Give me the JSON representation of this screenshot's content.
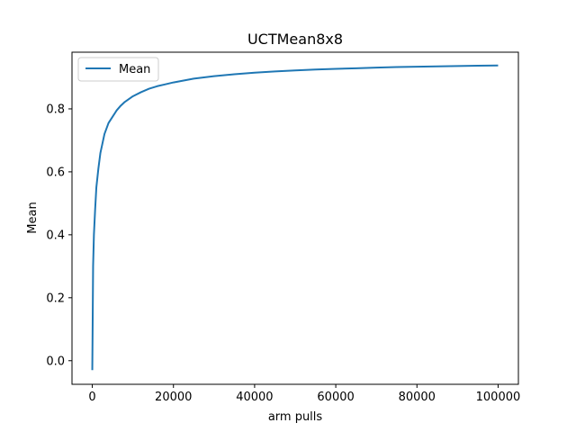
{
  "chart_data": {
    "type": "line",
    "title": "UCTMean8x8",
    "xlabel": "arm pulls",
    "ylabel": "Mean",
    "xlim": [
      -5000,
      105000
    ],
    "ylim": [
      -0.075,
      0.98
    ],
    "x_ticks": [
      0,
      20000,
      40000,
      60000,
      80000,
      100000
    ],
    "x_tick_labels": [
      "0",
      "20000",
      "40000",
      "60000",
      "80000",
      "100000"
    ],
    "y_ticks": [
      0.0,
      0.2,
      0.4,
      0.6,
      0.8
    ],
    "y_tick_labels": [
      "0.0",
      "0.2",
      "0.4",
      "0.6",
      "0.8"
    ],
    "grid": false,
    "legend": {
      "position": "top-left",
      "entries": [
        "Mean"
      ]
    },
    "series": [
      {
        "name": "Mean",
        "color": "#1f77b4",
        "x": [
          0,
          200,
          400,
          700,
          1000,
          1500,
          2000,
          2500,
          3000,
          4000,
          5000,
          6000,
          7000,
          8000,
          10000,
          12000,
          14000,
          16000,
          18000,
          20000,
          25000,
          30000,
          35000,
          40000,
          45000,
          50000,
          55000,
          60000,
          65000,
          70000,
          75000,
          80000,
          85000,
          90000,
          95000,
          100000
        ],
        "y": [
          -0.03,
          0.3,
          0.4,
          0.48,
          0.55,
          0.61,
          0.66,
          0.69,
          0.72,
          0.755,
          0.775,
          0.795,
          0.81,
          0.822,
          0.84,
          0.853,
          0.864,
          0.872,
          0.878,
          0.884,
          0.896,
          0.904,
          0.91,
          0.915,
          0.919,
          0.922,
          0.925,
          0.927,
          0.929,
          0.931,
          0.933,
          0.934,
          0.935,
          0.936,
          0.937,
          0.938
        ]
      }
    ]
  }
}
